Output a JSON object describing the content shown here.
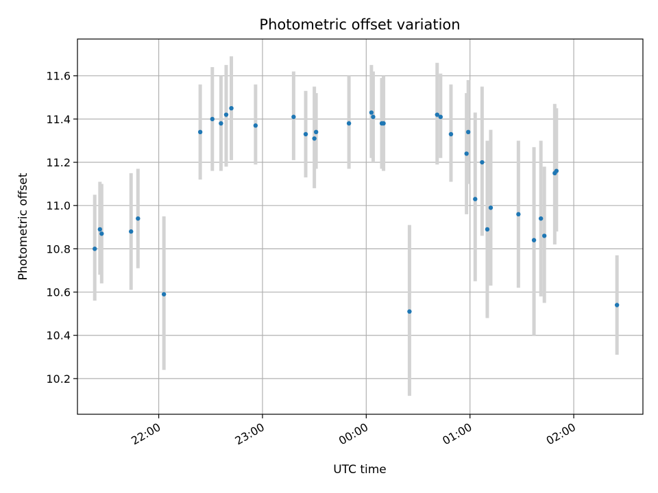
{
  "chart_data": {
    "type": "scatter",
    "title": "Photometric offset variation",
    "xlabel": "UTC time",
    "ylabel": "Photometric offset",
    "x_unit": "UTC",
    "xlim": [
      "21:13",
      "02:40"
    ],
    "ylim": [
      10.035,
      11.77
    ],
    "x_ticks": [
      "22:00",
      "23:00",
      "00:00",
      "01:00",
      "02:00"
    ],
    "y_ticks": [
      10.2,
      10.4,
      10.6,
      10.8,
      11.0,
      11.2,
      11.4,
      11.6
    ],
    "grid": true,
    "marker_color": "#1f77b4",
    "errorbar_color": "#d3d3d3",
    "points": [
      {
        "x": "21:23",
        "y": 10.8,
        "low": 10.56,
        "high": 11.05
      },
      {
        "x": "21:26",
        "y": 10.89,
        "low": 10.68,
        "high": 11.11
      },
      {
        "x": "21:27",
        "y": 10.87,
        "low": 10.64,
        "high": 11.1
      },
      {
        "x": "21:44",
        "y": 10.88,
        "low": 10.61,
        "high": 11.15
      },
      {
        "x": "21:48",
        "y": 10.94,
        "low": 10.71,
        "high": 11.17
      },
      {
        "x": "22:03",
        "y": 10.59,
        "low": 10.24,
        "high": 10.95
      },
      {
        "x": "22:24",
        "y": 11.34,
        "low": 11.12,
        "high": 11.56
      },
      {
        "x": "22:31",
        "y": 11.4,
        "low": 11.16,
        "high": 11.64
      },
      {
        "x": "22:36",
        "y": 11.38,
        "low": 11.16,
        "high": 11.6
      },
      {
        "x": "22:39",
        "y": 11.42,
        "low": 11.18,
        "high": 11.65
      },
      {
        "x": "22:42",
        "y": 11.45,
        "low": 11.21,
        "high": 11.69
      },
      {
        "x": "22:56",
        "y": 11.37,
        "low": 11.19,
        "high": 11.56
      },
      {
        "x": "23:18",
        "y": 11.41,
        "low": 11.21,
        "high": 11.62
      },
      {
        "x": "23:25",
        "y": 11.33,
        "low": 11.13,
        "high": 11.53
      },
      {
        "x": "23:30",
        "y": 11.31,
        "low": 11.08,
        "high": 11.55
      },
      {
        "x": "23:31",
        "y": 11.34,
        "low": 11.17,
        "high": 11.52
      },
      {
        "x": "23:50",
        "y": 11.38,
        "low": 11.17,
        "high": 11.6
      },
      {
        "x": "00:03",
        "y": 11.43,
        "low": 11.22,
        "high": 11.65
      },
      {
        "x": "00:04",
        "y": 11.41,
        "low": 11.2,
        "high": 11.62
      },
      {
        "x": "00:09",
        "y": 11.38,
        "low": 11.17,
        "high": 11.59
      },
      {
        "x": "00:10",
        "y": 11.38,
        "low": 11.16,
        "high": 11.6
      },
      {
        "x": "00:25",
        "y": 10.51,
        "low": 10.12,
        "high": 10.91
      },
      {
        "x": "00:41",
        "y": 11.42,
        "low": 11.19,
        "high": 11.66
      },
      {
        "x": "00:43",
        "y": 11.41,
        "low": 11.22,
        "high": 11.61
      },
      {
        "x": "00:49",
        "y": 11.33,
        "low": 11.11,
        "high": 11.56
      },
      {
        "x": "00:58",
        "y": 11.24,
        "low": 10.96,
        "high": 11.52
      },
      {
        "x": "00:59",
        "y": 11.34,
        "low": 11.1,
        "high": 11.58
      },
      {
        "x": "01:03",
        "y": 11.03,
        "low": 10.65,
        "high": 11.43
      },
      {
        "x": "01:07",
        "y": 11.2,
        "low": 10.86,
        "high": 11.55
      },
      {
        "x": "01:10",
        "y": 10.89,
        "low": 10.48,
        "high": 11.3
      },
      {
        "x": "01:12",
        "y": 10.99,
        "low": 10.63,
        "high": 11.35
      },
      {
        "x": "01:28",
        "y": 10.96,
        "low": 10.62,
        "high": 11.3
      },
      {
        "x": "01:37",
        "y": 10.84,
        "low": 10.4,
        "high": 11.27
      },
      {
        "x": "01:41",
        "y": 10.94,
        "low": 10.58,
        "high": 11.3
      },
      {
        "x": "01:43",
        "y": 10.86,
        "low": 10.55,
        "high": 11.18
      },
      {
        "x": "01:49",
        "y": 11.15,
        "low": 10.82,
        "high": 11.47
      },
      {
        "x": "01:50",
        "y": 11.16,
        "low": 10.88,
        "high": 11.45
      },
      {
        "x": "02:25",
        "y": 10.54,
        "low": 10.31,
        "high": 10.77
      }
    ]
  }
}
